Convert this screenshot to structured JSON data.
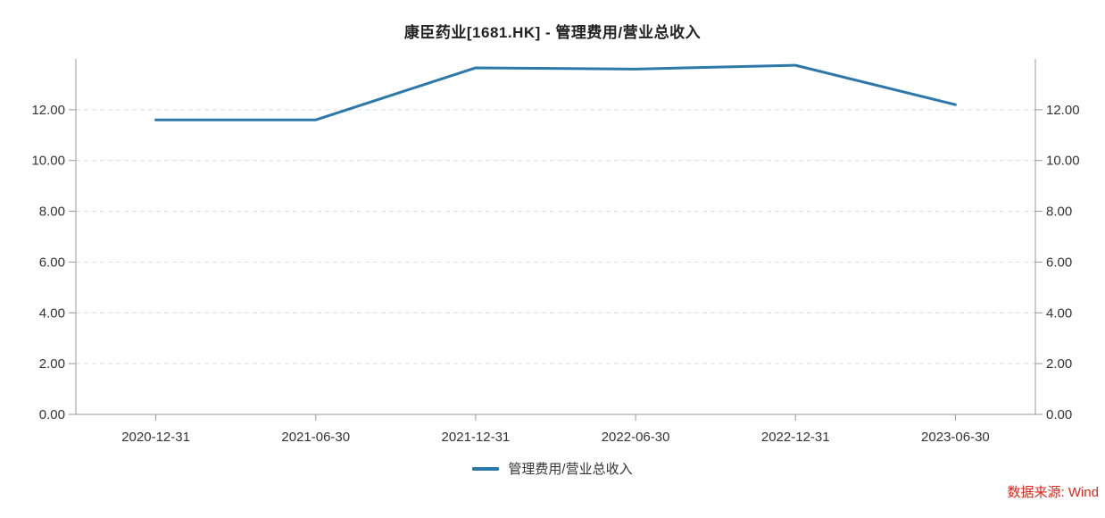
{
  "chart_data": {
    "type": "line",
    "title": "康臣药业[1681.HK] - 管理费用/营业总收入",
    "categories": [
      "2020-12-31",
      "2021-06-30",
      "2021-12-31",
      "2022-06-30",
      "2022-12-31",
      "2023-06-30"
    ],
    "series": [
      {
        "name": "管理费用/营业总收入",
        "values": [
          11.6,
          11.6,
          13.65,
          13.6,
          13.75,
          12.2
        ],
        "color": "#2c78a8"
      }
    ],
    "xlabel": "",
    "ylabel": "",
    "ylim": [
      0,
      14
    ],
    "y_ticks": [
      0,
      2,
      4,
      6,
      8,
      10,
      12
    ],
    "y_tick_decimals": 2,
    "dual_y_axis": true,
    "grid": "horizontal-dashed",
    "legend_position": "bottom",
    "point_markers": false
  },
  "styles": {
    "line_color": "#2c78a8",
    "axis_color": "#999999",
    "grid_color": "#dddddd",
    "label_color": "#333333",
    "title_color": "#222222",
    "source_color": "#e2231a",
    "background": "#ffffff"
  },
  "footer": {
    "source_label": "数据来源: Wind"
  }
}
